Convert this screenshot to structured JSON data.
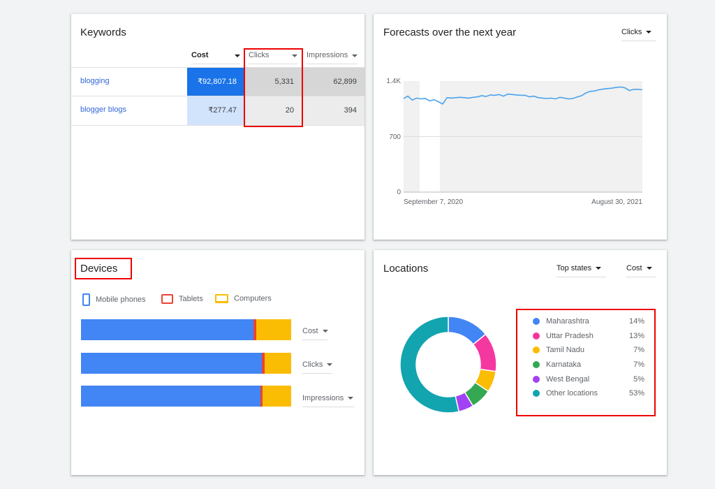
{
  "keywords": {
    "title": "Keywords",
    "columns": {
      "cost": "Cost",
      "clicks": "Clicks",
      "impressions": "Impressions"
    },
    "rows": [
      {
        "name": "blogging",
        "cost": "₹92,807.18",
        "clicks": "5,331",
        "impressions": "62,899"
      },
      {
        "name": "blogger blogs",
        "cost": "₹277.47",
        "clicks": "20",
        "impressions": "394"
      }
    ]
  },
  "forecast": {
    "title": "Forecasts over the next year",
    "metric": "Clicks",
    "chart_data": {
      "type": "line",
      "y_ticks": [
        "1.4K",
        "700",
        "0"
      ],
      "ylim": [
        0,
        1400
      ],
      "x_start_label": "September 7, 2020",
      "x_end_label": "August 30, 2021",
      "series": [
        {
          "values": [
            1180,
            1210,
            1160,
            1185,
            1175,
            1180,
            1150,
            1165,
            1140,
            1110,
            1190,
            1185,
            1190,
            1195,
            1190,
            1185,
            1195,
            1200,
            1215,
            1205,
            1225,
            1220,
            1230,
            1210,
            1235,
            1230,
            1225,
            1220,
            1220,
            1200,
            1210,
            1190,
            1185,
            1180,
            1185,
            1175,
            1195,
            1185,
            1175,
            1180,
            1200,
            1215,
            1250,
            1270,
            1275,
            1290,
            1300,
            1305,
            1310,
            1320,
            1325,
            1315,
            1280,
            1295,
            1295,
            1290
          ]
        }
      ]
    }
  },
  "devices": {
    "title": "Devices",
    "legend": [
      {
        "label": "Mobile phones",
        "color": "#4285f4",
        "icon": "mobile-icon"
      },
      {
        "label": "Tablets",
        "color": "#ea4335",
        "icon": "tablet-icon"
      },
      {
        "label": "Computers",
        "color": "#fbbc04",
        "icon": "computer-icon"
      }
    ],
    "bars": [
      {
        "label": "Cost",
        "mobile": 82,
        "tablet": 1.5,
        "computer": 16.5
      },
      {
        "label": "Clicks",
        "mobile": 86,
        "tablet": 1.5,
        "computer": 12.5
      },
      {
        "label": "Impressions",
        "mobile": 85.5,
        "tablet": 0.8,
        "computer": 13.7
      }
    ]
  },
  "locations": {
    "title": "Locations",
    "filter": "Top states",
    "metric": "Cost",
    "items": [
      {
        "name": "Maharashtra",
        "pct": "14%",
        "value": 14,
        "color": "#4285f4"
      },
      {
        "name": "Uttar Pradesh",
        "pct": "13%",
        "value": 13,
        "color": "#f538a0"
      },
      {
        "name": "Tamil Nadu",
        "pct": "7%",
        "value": 7,
        "color": "#fbbc04"
      },
      {
        "name": "Karnataka",
        "pct": "7%",
        "value": 7,
        "color": "#34a853"
      },
      {
        "name": "West Bengal",
        "pct": "5%",
        "value": 5,
        "color": "#a142f4"
      },
      {
        "name": "Other locations",
        "pct": "53%",
        "value": 53,
        "color": "#12a4af"
      }
    ]
  }
}
